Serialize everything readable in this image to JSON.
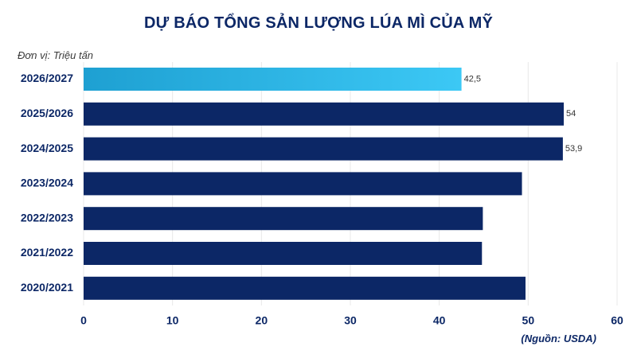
{
  "title": "DỰ BÁO TỔNG SẢN LƯỢNG LÚA MÌ CỦA MỸ",
  "unit": "Đơn vị: Triệu tấn",
  "source": "(Nguồn: USDA)",
  "colors": {
    "bar": "#0c2766",
    "highlight_start": "#1ea0d2",
    "highlight_end": "#3cc8f5",
    "grid": "#e8e8e8",
    "text": "#0c2766"
  },
  "chart_data": {
    "type": "bar",
    "orientation": "horizontal",
    "categories": [
      "2026/2027",
      "2025/2026",
      "2024/2025",
      "2023/2024",
      "2022/2023",
      "2021/2022",
      "2020/2021"
    ],
    "values": [
      42.5,
      54,
      53.9,
      49.3,
      44.9,
      44.8,
      49.7
    ],
    "data_labels": [
      "42,5",
      "54",
      "53,9",
      "",
      "",
      "",
      ""
    ],
    "highlight_index": 0,
    "xlim": [
      0,
      60
    ],
    "xticks": [
      0,
      10,
      20,
      30,
      40,
      50,
      60
    ],
    "grid": true
  }
}
